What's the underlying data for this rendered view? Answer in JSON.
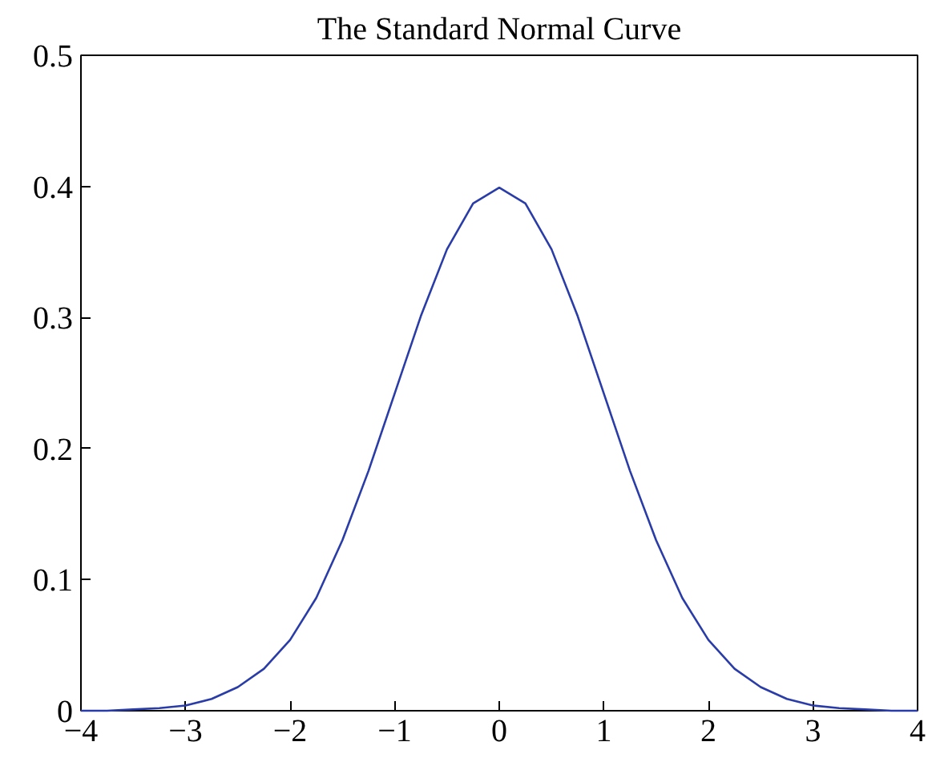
{
  "chart_data": {
    "type": "line",
    "title": "The Standard Normal Curve",
    "x": [
      -4,
      -3.75,
      -3.5,
      -3.25,
      -3,
      -2.75,
      -2.5,
      -2.25,
      -2,
      -1.75,
      -1.5,
      -1.25,
      -1,
      -0.75,
      -0.5,
      -0.25,
      0,
      0.25,
      0.5,
      0.75,
      1,
      1.25,
      1.5,
      1.75,
      2,
      2.25,
      2.5,
      2.75,
      3,
      3.25,
      3.5,
      3.75,
      4
    ],
    "series": [
      {
        "color": "#2a3ca8",
        "values": [
          0.0,
          0.0,
          0.001,
          0.002,
          0.004,
          0.009,
          0.018,
          0.032,
          0.054,
          0.086,
          0.13,
          0.183,
          0.242,
          0.301,
          0.352,
          0.387,
          0.399,
          0.387,
          0.352,
          0.301,
          0.242,
          0.183,
          0.13,
          0.086,
          0.054,
          0.032,
          0.018,
          0.009,
          0.004,
          0.002,
          0.001,
          0.0,
          0.0
        ]
      }
    ],
    "xlim": [
      -4,
      4
    ],
    "ylim": [
      0,
      0.5
    ],
    "xticks": [
      {
        "value": -4,
        "label": "−4"
      },
      {
        "value": -3,
        "label": "−3"
      },
      {
        "value": -2,
        "label": "−2"
      },
      {
        "value": -1,
        "label": "−1"
      },
      0,
      1,
      2,
      3,
      4
    ],
    "yticks": [
      0,
      0.1,
      0.2,
      0.3,
      0.4,
      0.5
    ],
    "grid": false,
    "marker": "none",
    "line_style": "solid"
  }
}
